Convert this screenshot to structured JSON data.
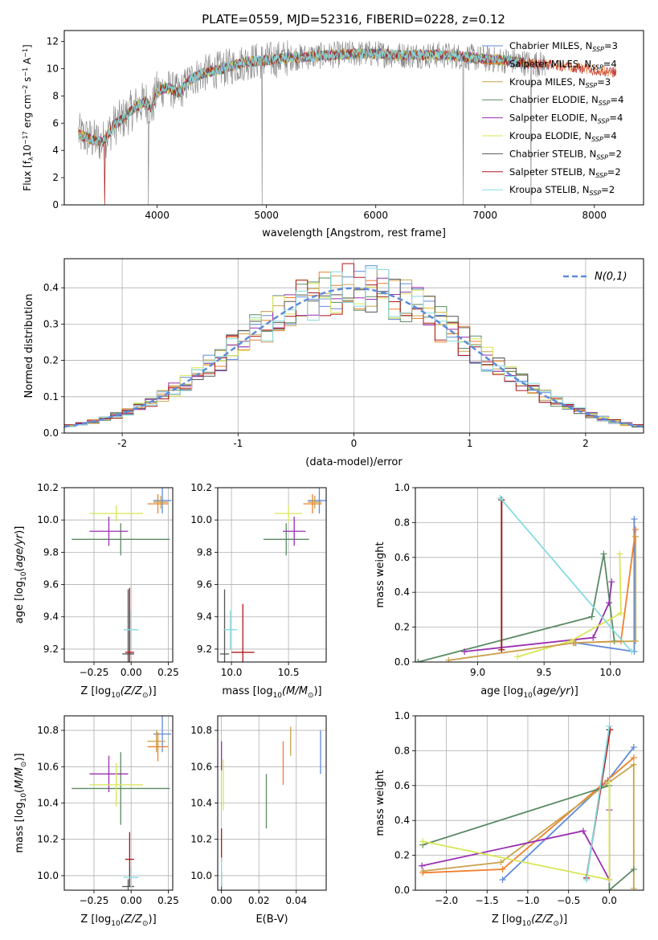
{
  "figure": {
    "title": "PLATE=0559, MJD=52316, FIBERID=0228, z=0.12"
  },
  "models": [
    {
      "name": "Chabrier MILES, N$_{SSP}$=3",
      "label_main": "Chabrier MILES, N",
      "label_sub": "SSP",
      "label_tail": "=3",
      "color": "#5f8ad9"
    },
    {
      "name": "Salpeter MILES, N$_{SSP}$=4",
      "label_main": "Salpeter MILES, N",
      "label_sub": "SSP",
      "label_tail": "=4",
      "color": "#f07f2a"
    },
    {
      "name": "Kroupa MILES, N$_{SSP}$=3",
      "label_main": "Kroupa MILES, N",
      "label_sub": "SSP",
      "label_tail": "=3",
      "color": "#c9a24c"
    },
    {
      "name": "Chabrier ELODIE, N$_{SSP}$=4",
      "label_main": "Chabrier ELODIE, N",
      "label_sub": "SSP",
      "label_tail": "=4",
      "color": "#5a8a62"
    },
    {
      "name": "Salpeter ELODIE, N$_{SSP}$=4",
      "label_main": "Salpeter ELODIE, N",
      "label_sub": "SSP",
      "label_tail": "=4",
      "color": "#9a2fb0"
    },
    {
      "name": "Kroupa ELODIE, N$_{SSP}$=4",
      "label_main": "Kroupa ELODIE, N",
      "label_sub": "SSP",
      "label_tail": "=4",
      "color": "#d8e655"
    },
    {
      "name": "Chabrier STELIB, N$_{SSP}$=2",
      "label_main": "Chabrier STELIB, N",
      "label_sub": "SSP",
      "label_tail": "=2",
      "color": "#555555"
    },
    {
      "name": "Salpeter STELIB, N$_{SSP}$=2",
      "label_main": "Salpeter STELIB, N",
      "label_sub": "SSP",
      "label_tail": "=2",
      "color": "#b01818"
    },
    {
      "name": "Kroupa STELIB, N$_{SSP}$=2",
      "label_main": "Kroupa STELIB, N",
      "label_sub": "SSP",
      "label_tail": "=2",
      "color": "#86dbe0"
    }
  ],
  "chart_data": [
    {
      "id": "spectrum",
      "type": "line",
      "xlabel": "wavelength [Angstrom, rest frame]",
      "ylabel": "Flux [f$_\\lambda$10$^{-17}$ erg cm$^{-2}$ s$^{-1}$ A$^{-1}$]",
      "xlim": [
        3150,
        8450
      ],
      "ylim": [
        0,
        12.8
      ],
      "xticks": [
        4000,
        5000,
        6000,
        7000,
        8000
      ],
      "yticks": [
        0,
        2,
        4,
        6,
        8,
        10,
        12
      ],
      "data_color": "#808080",
      "continuum_x": [
        3280,
        3400,
        3500,
        3600,
        3700,
        3800,
        3900,
        3950,
        4000,
        4100,
        4200,
        4300,
        4400,
        4500,
        4600,
        4700,
        4800,
        5000,
        5200,
        5400,
        5600,
        5800,
        6000,
        6200,
        6400,
        6600,
        6800,
        7000,
        7200,
        7400,
        7600,
        7800,
        8000,
        8200
      ],
      "continuum_y": [
        5.2,
        4.8,
        4.6,
        5.8,
        6.4,
        7.2,
        7.6,
        7.0,
        8.4,
        8.6,
        8.2,
        9.2,
        9.6,
        9.8,
        10.0,
        10.2,
        10.5,
        10.6,
        10.8,
        10.9,
        11.0,
        11.1,
        11.1,
        11.0,
        11.0,
        11.0,
        10.9,
        10.7,
        10.6,
        10.4,
        10.3,
        10.1,
        9.9,
        9.7
      ],
      "drops": [
        3520,
        3920,
        4960,
        6800,
        7420
      ],
      "legend_loc": "upper right"
    },
    {
      "id": "residuals",
      "type": "line",
      "xlabel": "(data-model)/error",
      "ylabel": "Normed distribution",
      "xlim": [
        -2.5,
        2.5
      ],
      "ylim": [
        0,
        0.48
      ],
      "xticks": [
        -2,
        -1,
        0,
        1,
        2
      ],
      "yticks": [
        0.0,
        0.1,
        0.2,
        0.3,
        0.4
      ],
      "gaussian_label": "N(0,1)",
      "gaussian_color": "#5f8ad9",
      "bin_width": 0.1,
      "grid": true,
      "legend_loc": "upper right"
    },
    {
      "id": "age_vs_Z",
      "type": "scatter",
      "xlabel_main": "Z [log",
      "xlabel_sub": "10",
      "xlabel_tail": "(Z/Z",
      "xlabel_end": ")]",
      "ylabel": "age [log10(age/yr)]",
      "xlim": [
        -0.45,
        0.28
      ],
      "ylim": [
        9.12,
        10.2
      ],
      "xticks": [
        -0.25,
        0.0,
        0.25
      ],
      "xticklabels": [
        "−0.25",
        "0.00",
        "0.25"
      ],
      "yticks": [
        9.2,
        9.4,
        9.6,
        9.8,
        10.0,
        10.2
      ],
      "points": [
        {
          "model": 0,
          "x": 0.21,
          "y": 10.12,
          "xerr": 0.06,
          "yerr": 0.08
        },
        {
          "model": 1,
          "x": 0.18,
          "y": 10.1,
          "xerr": 0.07,
          "yerr": 0.06
        },
        {
          "model": 2,
          "x": 0.2,
          "y": 10.11,
          "xerr": 0.05,
          "yerr": 0.04
        },
        {
          "model": 3,
          "x": -0.07,
          "y": 9.88,
          "xerr": 0.33,
          "yerr": 0.1
        },
        {
          "model": 4,
          "x": -0.15,
          "y": 9.93,
          "xerr": 0.13,
          "yerr": 0.09
        },
        {
          "model": 5,
          "x": -0.1,
          "y": 10.04,
          "xerr": 0.18,
          "yerr": 0.05
        },
        {
          "model": 6,
          "x": -0.02,
          "y": 9.17,
          "xerr": 0.04,
          "yerr": 0.4
        },
        {
          "model": 7,
          "x": -0.01,
          "y": 9.18,
          "xerr": 0.03,
          "yerr": 0.4
        },
        {
          "model": 8,
          "x": 0.0,
          "y": 9.32,
          "xerr": 0.05,
          "yerr": 0.12
        }
      ]
    },
    {
      "id": "age_vs_mass",
      "type": "scatter",
      "xlabel_main": "mass [log",
      "xlabel_sub": "10",
      "xlabel_tail": "(M/M",
      "xlabel_end": ")]",
      "xlim": [
        9.88,
        10.83
      ],
      "ylim": [
        9.12,
        10.2
      ],
      "xticks": [
        10.0,
        10.5
      ],
      "xticklabels": [
        "10.0",
        "10.5"
      ],
      "yticks": [
        9.2,
        9.4,
        9.6,
        9.8,
        10.0,
        10.2
      ],
      "points": [
        {
          "model": 0,
          "x": 10.77,
          "y": 10.12,
          "xerr": 0.1,
          "yerr": 0.08
        },
        {
          "model": 1,
          "x": 10.71,
          "y": 10.1,
          "xerr": 0.08,
          "yerr": 0.06
        },
        {
          "model": 2,
          "x": 10.73,
          "y": 10.11,
          "xerr": 0.06,
          "yerr": 0.04
        },
        {
          "model": 3,
          "x": 10.48,
          "y": 9.88,
          "xerr": 0.2,
          "yerr": 0.1
        },
        {
          "model": 4,
          "x": 10.55,
          "y": 9.93,
          "xerr": 0.1,
          "yerr": 0.09
        },
        {
          "model": 5,
          "x": 10.5,
          "y": 10.04,
          "xerr": 0.12,
          "yerr": 0.05
        },
        {
          "model": 6,
          "x": 9.94,
          "y": 9.17,
          "xerr": 0.04,
          "yerr": 0.4
        },
        {
          "model": 7,
          "x": 10.1,
          "y": 9.18,
          "xerr": 0.1,
          "yerr": 0.3
        },
        {
          "model": 8,
          "x": 9.99,
          "y": 9.32,
          "xerr": 0.06,
          "yerr": 0.12
        }
      ]
    },
    {
      "id": "weight_vs_age",
      "type": "line",
      "xlabel": "age [log10(age/yr)]",
      "ylabel": "mass weight",
      "xlim": [
        8.53,
        10.25
      ],
      "ylim": [
        0,
        1.0
      ],
      "xticks": [
        9.0,
        9.5,
        10.0
      ],
      "xticklabels": [
        "9.0",
        "9.5",
        "10.0"
      ],
      "yticks": [
        0.0,
        0.2,
        0.4,
        0.6,
        0.8,
        1.0
      ],
      "series": [
        {
          "model": 0,
          "x": [
            9.74,
            10.18,
            10.18
          ],
          "y": [
            0.11,
            0.06,
            0.82
          ]
        },
        {
          "model": 1,
          "x": [
            9.72,
            10.08,
            10.19
          ],
          "y": [
            0.11,
            0.12,
            0.76
          ]
        },
        {
          "model": 3,
          "x": [
            8.55,
            9.86,
            9.95,
            10.03
          ],
          "y": [
            0.0,
            0.26,
            0.62,
            0.12
          ]
        },
        {
          "model": 4,
          "x": [
            8.9,
            9.87,
            9.99,
            10.01
          ],
          "y": [
            0.06,
            0.14,
            0.34,
            0.46
          ]
        },
        {
          "model": 5,
          "x": [
            9.3,
            9.7,
            10.08,
            10.07
          ],
          "y": [
            0.03,
            0.12,
            0.28,
            0.62
          ]
        },
        {
          "model": 6,
          "x": [
            9.18,
            9.18
          ],
          "y": [
            0.07,
            0.93
          ]
        },
        {
          "model": 7,
          "x": [
            9.18,
            9.18
          ],
          "y": [
            0.07,
            0.93
          ]
        },
        {
          "model": 8,
          "x": [
            9.17,
            10.16
          ],
          "y": [
            0.94,
            0.06
          ]
        },
        {
          "model": 2,
          "x": [
            8.78,
            9.73,
            10.19,
            10.19
          ],
          "y": [
            0.01,
            0.11,
            0.12,
            0.72
          ]
        }
      ]
    },
    {
      "id": "mass_vs_Z",
      "type": "scatter",
      "xlabel_main": "Z [log",
      "xlabel_sub": "10",
      "xlabel_tail": "(Z/Z",
      "xlabel_end": ")]",
      "ylabel": "mass [log10(M/Msun)]",
      "xlim": [
        -0.45,
        0.28
      ],
      "ylim": [
        9.92,
        10.88
      ],
      "xticks": [
        -0.25,
        0.0,
        0.25
      ],
      "xticklabels": [
        "−0.25",
        "0.00",
        "0.25"
      ],
      "yticks": [
        10.0,
        10.2,
        10.4,
        10.6,
        10.8
      ],
      "points": [
        {
          "model": 0,
          "x": 0.21,
          "y": 10.78,
          "xerr": 0.06,
          "yerr": 0.1
        },
        {
          "model": 1,
          "x": 0.18,
          "y": 10.71,
          "xerr": 0.07,
          "yerr": 0.08
        },
        {
          "model": 2,
          "x": 0.17,
          "y": 10.74,
          "xerr": 0.06,
          "yerr": 0.06
        },
        {
          "model": 3,
          "x": -0.07,
          "y": 10.48,
          "xerr": 0.33,
          "yerr": 0.2
        },
        {
          "model": 4,
          "x": -0.15,
          "y": 10.56,
          "xerr": 0.13,
          "yerr": 0.1
        },
        {
          "model": 5,
          "x": -0.1,
          "y": 10.5,
          "xerr": 0.18,
          "yerr": 0.12
        },
        {
          "model": 6,
          "x": -0.02,
          "y": 9.94,
          "xerr": 0.04,
          "yerr": 0.04
        },
        {
          "model": 7,
          "x": -0.01,
          "y": 10.09,
          "xerr": 0.03,
          "yerr": 0.15
        },
        {
          "model": 8,
          "x": 0.0,
          "y": 9.99,
          "xerr": 0.05,
          "yerr": 0.06
        }
      ]
    },
    {
      "id": "mass_vs_ebv",
      "type": "scatter",
      "xlabel": "E(B-V)",
      "xlim": [
        -0.002,
        0.056
      ],
      "ylim": [
        9.92,
        10.88
      ],
      "xticks": [
        0.0,
        0.02,
        0.04
      ],
      "xticklabels": [
        "0.00",
        "0.02",
        "0.04"
      ],
      "yticks": [
        10.0,
        10.2,
        10.4,
        10.6,
        10.8
      ],
      "points": [
        {
          "model": 0,
          "x": 0.053,
          "y": 10.68,
          "xerr": 0.0,
          "yerr": 0.12
        },
        {
          "model": 1,
          "x": 0.033,
          "y": 10.62,
          "xerr": 0.0,
          "yerr": 0.12
        },
        {
          "model": 2,
          "x": 0.037,
          "y": 10.74,
          "xerr": 0.0,
          "yerr": 0.08
        },
        {
          "model": 3,
          "x": 0.024,
          "y": 10.41,
          "xerr": 0.0,
          "yerr": 0.15
        },
        {
          "model": 4,
          "x": 0.0,
          "y": 10.66,
          "xerr": 0.0,
          "yerr": 0.08
        },
        {
          "model": 5,
          "x": 0.001,
          "y": 10.5,
          "xerr": 0.0,
          "yerr": 0.14
        },
        {
          "model": 6,
          "x": 0.0,
          "y": 9.97,
          "xerr": 0.0,
          "yerr": 0.05
        },
        {
          "model": 7,
          "x": 0.0,
          "y": 10.17,
          "xerr": 0.0,
          "yerr": 0.09
        },
        {
          "model": 8,
          "x": 0.0,
          "y": 10.02,
          "xerr": 0.0,
          "yerr": 0.08
        }
      ]
    },
    {
      "id": "weight_vs_Z",
      "type": "line",
      "xlabel_main": "Z [log",
      "xlabel_sub": "10",
      "xlabel_tail": "(Z/Z",
      "xlabel_end": ")]",
      "ylabel": "mass weight",
      "xlim": [
        -2.38,
        0.42
      ],
      "ylim": [
        0,
        1.0
      ],
      "xticks": [
        -2.0,
        -1.5,
        -1.0,
        -0.5,
        0.0
      ],
      "xticklabels": [
        "−2.0",
        "−1.5",
        "−1.0",
        "−0.5",
        "0.0"
      ],
      "yticks": [
        0.0,
        0.2,
        0.4,
        0.6,
        0.8,
        1.0
      ],
      "series": [
        {
          "model": 0,
          "x": [
            -1.31,
            -0.02,
            0.3
          ],
          "y": [
            0.06,
            0.63,
            0.82
          ]
        },
        {
          "model": 1,
          "x": [
            -2.29,
            -1.31,
            0.3
          ],
          "y": [
            0.1,
            0.12,
            0.76
          ]
        },
        {
          "model": 2,
          "x": [
            -2.28,
            -1.33,
            0.0,
            0.3,
            0.3
          ],
          "y": [
            0.11,
            0.16,
            0.62,
            0.72,
            0.01
          ]
        },
        {
          "model": 3,
          "x": [
            -2.29,
            0.0,
            0.0,
            0.3
          ],
          "y": [
            0.26,
            0.6,
            0.0,
            0.12
          ]
        },
        {
          "model": 4,
          "x": [
            -2.3,
            -0.32,
            0.0,
            0.0
          ],
          "y": [
            0.14,
            0.34,
            0.06,
            0.46
          ]
        },
        {
          "model": 5,
          "x": [
            -2.29,
            0.0,
            0.0
          ],
          "y": [
            0.28,
            0.06,
            0.62
          ]
        },
        {
          "model": 6,
          "x": [
            -0.28,
            0.0
          ],
          "y": [
            0.07,
            0.92
          ]
        },
        {
          "model": 7,
          "x": [
            -0.28,
            0.01
          ],
          "y": [
            0.07,
            0.92
          ]
        },
        {
          "model": 8,
          "x": [
            -0.28,
            0.0
          ],
          "y": [
            0.06,
            0.94
          ]
        }
      ]
    }
  ]
}
